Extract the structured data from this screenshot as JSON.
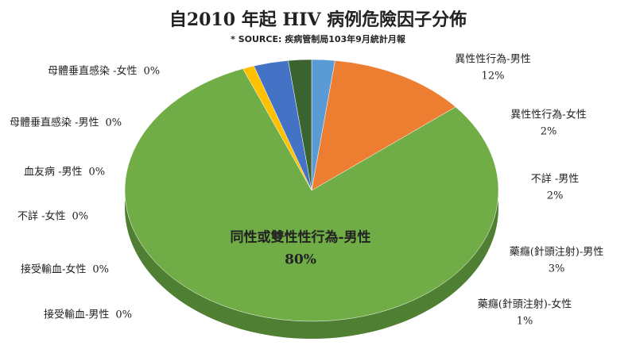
{
  "chart_data": {
    "type": "pie",
    "title": "自2010 年起 HIV 病例危險因子分佈",
    "subtitle": "* SOURCE: 疾病管制局103年9月統計月報",
    "categories": [
      "異性性行為-女性",
      "異性性行為-男性",
      "同性或雙性性行為-男性",
      "母體垂直感染 -女性",
      "母體垂直感染 -男性",
      "血友病 -男性",
      "不詳 -女性",
      "接受輸血-女性",
      "接受輸血-男性",
      "藥癮(針頭注射)-女性",
      "藥癮(針頭注射)-男性",
      "不詳 -男性"
    ],
    "values": [
      2,
      12,
      80,
      0,
      0,
      0,
      0,
      0,
      0,
      1,
      3,
      2
    ],
    "value_labels": [
      "2%",
      "12%",
      "80%",
      "0%",
      "0%",
      "0%",
      "0%",
      "0%",
      "0%",
      "1%",
      "3%",
      "2%"
    ],
    "colors": [
      "#5b9bd5",
      "#ed7d31",
      "#70ad47",
      "#a5a5a5",
      "#264478",
      "#9e480e",
      "#636363",
      "#997300",
      "#43682b",
      "#ffc000",
      "#4472c4",
      "#3b6330"
    ]
  }
}
